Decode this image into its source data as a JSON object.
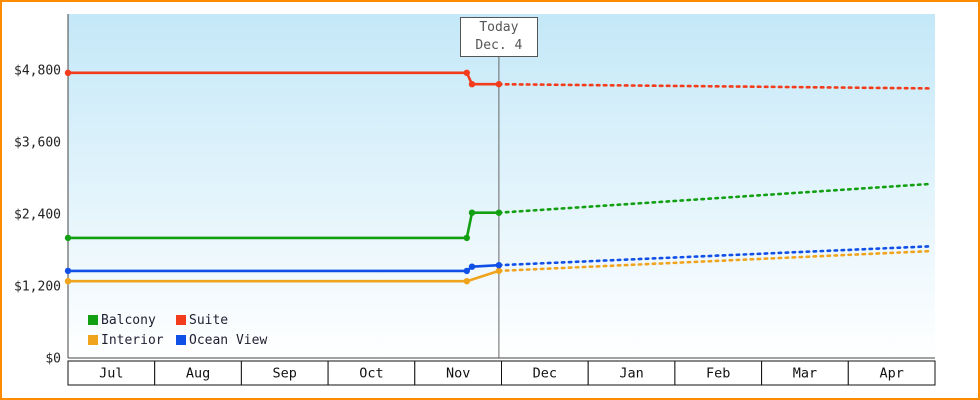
{
  "colors": {
    "frame_border": "#ff8c00",
    "plot_bg_top": "#c4e8f8",
    "plot_bg_bottom": "#ffffff",
    "axis": "#444444",
    "today_line": "#666666"
  },
  "chart_data": {
    "type": "line",
    "title": "",
    "y_axis": {
      "max": 5730,
      "ticks": [
        {
          "value": 0,
          "label": "$0"
        },
        {
          "value": 1200,
          "label": "$1,200"
        },
        {
          "value": 2400,
          "label": "$2,400"
        },
        {
          "value": 3600,
          "label": "$3,600"
        },
        {
          "value": 4800,
          "label": "$4,800"
        }
      ]
    },
    "x_axis": {
      "months": [
        "Jul",
        "Aug",
        "Sep",
        "Oct",
        "Nov",
        "Dec",
        "Jan",
        "Feb",
        "Mar",
        "Apr"
      ]
    },
    "today": {
      "line1": "Today",
      "line2": "Dec. 4",
      "x": 4.97
    },
    "series": [
      {
        "name": "Balcony",
        "color": "#12a012",
        "solid": [
          [
            0,
            2000
          ],
          [
            4.6,
            2000
          ],
          [
            4.66,
            2420
          ],
          [
            4.97,
            2420
          ]
        ],
        "dashed": [
          [
            4.97,
            2420
          ],
          [
            9.95,
            2900
          ]
        ],
        "markers": [
          [
            0,
            2000
          ],
          [
            4.6,
            2000
          ],
          [
            4.66,
            2420
          ],
          [
            4.97,
            2420
          ]
        ]
      },
      {
        "name": "Suite",
        "color": "#f23c1c",
        "solid": [
          [
            0,
            4750
          ],
          [
            4.6,
            4750
          ],
          [
            4.66,
            4560
          ],
          [
            4.97,
            4560
          ]
        ],
        "dashed": [
          [
            4.97,
            4560
          ],
          [
            9.95,
            4490
          ]
        ],
        "markers": [
          [
            0,
            4750
          ],
          [
            4.6,
            4750
          ],
          [
            4.66,
            4560
          ],
          [
            4.97,
            4560
          ]
        ]
      },
      {
        "name": "Interior",
        "color": "#f0a41e",
        "solid": [
          [
            0,
            1280
          ],
          [
            4.6,
            1280
          ],
          [
            4.97,
            1450
          ]
        ],
        "dashed": [
          [
            4.97,
            1450
          ],
          [
            9.95,
            1780
          ]
        ],
        "markers": [
          [
            0,
            1280
          ],
          [
            4.6,
            1280
          ],
          [
            4.97,
            1450
          ]
        ]
      },
      {
        "name": "Ocean View",
        "color": "#1150e6",
        "solid": [
          [
            0,
            1450
          ],
          [
            4.6,
            1450
          ],
          [
            4.66,
            1520
          ],
          [
            4.97,
            1545
          ]
        ],
        "dashed": [
          [
            4.97,
            1545
          ],
          [
            9.95,
            1860
          ]
        ],
        "markers": [
          [
            0,
            1450
          ],
          [
            4.6,
            1450
          ],
          [
            4.66,
            1520
          ],
          [
            4.97,
            1545
          ]
        ]
      }
    ],
    "legend_order": [
      0,
      1,
      2,
      3
    ]
  }
}
